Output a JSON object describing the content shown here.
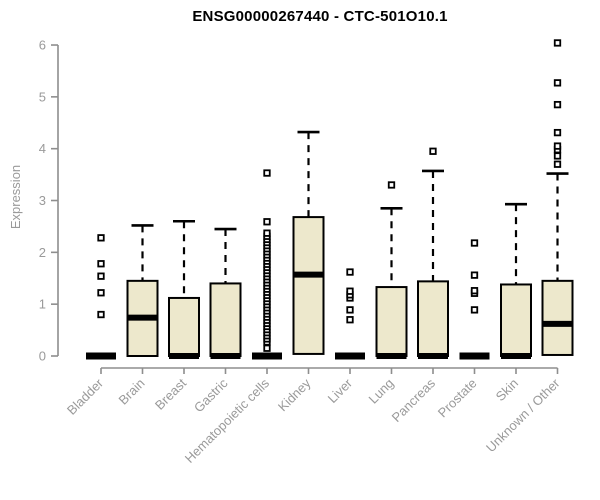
{
  "title": "ENSG00000267440 - CTC-501O10.1",
  "chart_data": {
    "type": "boxplot",
    "title": "ENSG00000267440 - CTC-501O10.1",
    "xlabel": "",
    "ylabel": "Expression",
    "ylim": [
      0,
      6
    ],
    "yticks": [
      0,
      1,
      2,
      3,
      4,
      5,
      6
    ],
    "grid": false,
    "legend": "none",
    "categories": [
      "Bladder",
      "Brain",
      "Breast",
      "Gastric",
      "Hematopoietic cells",
      "Kidney",
      "Liver",
      "Lung",
      "Pancreas",
      "Prostate",
      "Skin",
      "Unknown / Other"
    ],
    "series": [
      {
        "name": "Bladder",
        "min": 0,
        "q1": 0,
        "median": 0,
        "q3": 0,
        "max": 0,
        "outliers": [
          0.8,
          1.22,
          1.54,
          1.78,
          2.28
        ]
      },
      {
        "name": "Brain",
        "min": 0,
        "q1": 0,
        "median": 0.74,
        "q3": 1.45,
        "max": 2.52,
        "outliers": []
      },
      {
        "name": "Breast",
        "min": 0,
        "q1": 0,
        "median": 0,
        "q3": 1.12,
        "max": 2.6,
        "outliers": []
      },
      {
        "name": "Gastric",
        "min": 0,
        "q1": 0,
        "median": 0,
        "q3": 1.4,
        "max": 2.45,
        "outliers": []
      },
      {
        "name": "Hematopoietic cells",
        "min": 0,
        "q1": 0,
        "median": 0,
        "q3": 0,
        "max": 0,
        "outliers": [
          0.15,
          0.27,
          0.33,
          0.39,
          0.45,
          0.51,
          0.57,
          0.63,
          0.69,
          0.75,
          0.81,
          0.87,
          0.93,
          0.99,
          1.05,
          1.11,
          1.17,
          1.23,
          1.29,
          1.35,
          1.41,
          1.47,
          1.53,
          1.59,
          1.65,
          1.71,
          1.77,
          1.83,
          1.89,
          1.95,
          2.01,
          2.07,
          2.13,
          2.19,
          2.25,
          2.31,
          2.37,
          2.59,
          3.53
        ]
      },
      {
        "name": "Kidney",
        "min": 0,
        "q1": 0.04,
        "median": 1.57,
        "q3": 2.68,
        "max": 4.32,
        "outliers": []
      },
      {
        "name": "Liver",
        "min": 0,
        "q1": 0,
        "median": 0,
        "q3": 0,
        "max": 0,
        "outliers": [
          0.7,
          0.89,
          1.12,
          1.18,
          1.25,
          1.62
        ]
      },
      {
        "name": "Lung",
        "min": 0,
        "q1": 0,
        "median": 0,
        "q3": 1.33,
        "max": 2.85,
        "outliers": [
          3.3
        ]
      },
      {
        "name": "Pancreas",
        "min": 0,
        "q1": 0,
        "median": 0,
        "q3": 1.44,
        "max": 3.57,
        "outliers": [
          3.95
        ]
      },
      {
        "name": "Prostate",
        "min": 0,
        "q1": 0,
        "median": 0,
        "q3": 0,
        "max": 0,
        "outliers": [
          0.89,
          1.21,
          1.26,
          1.56,
          2.18
        ]
      },
      {
        "name": "Skin",
        "min": 0,
        "q1": 0,
        "median": 0,
        "q3": 1.38,
        "max": 2.93,
        "outliers": []
      },
      {
        "name": "Unknown / Other",
        "min": 0,
        "q1": 0.02,
        "median": 0.62,
        "q3": 1.45,
        "max": 3.52,
        "outliers": [
          3.7,
          3.86,
          3.98,
          4.05,
          4.31,
          4.85,
          5.27,
          6.04
        ]
      }
    ],
    "colors": {
      "box_fill": "#ede8cc",
      "box_border": "#000000",
      "median": "#000000",
      "whisker": "#000000",
      "outlier_stroke": "#000000",
      "outlier_fill": "#ffffff",
      "axis": "#8e8e8e",
      "tick_label": "#9a9a9a",
      "title": "#000000",
      "background": "#ffffff"
    }
  }
}
